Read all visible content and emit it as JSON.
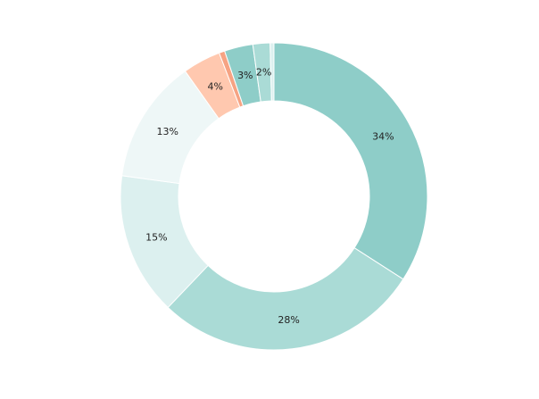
{
  "chart_data": {
    "type": "pie",
    "variant": "donut",
    "legend": "none",
    "slices": [
      {
        "label": "34%",
        "value": 34.0,
        "color": "#8ecdc8"
      },
      {
        "label": "28%",
        "value": 28.0,
        "color": "#aadbd6"
      },
      {
        "label": "15%",
        "value": 15.0,
        "color": "#dcf0ef"
      },
      {
        "label": "13%",
        "value": 13.0,
        "color": "#eef7f7"
      },
      {
        "label": "4%",
        "value": 4.0,
        "color": "#ffc8af"
      },
      {
        "label": "",
        "value": 0.6,
        "color": "#f6a383"
      },
      {
        "label": "3%",
        "value": 3.0,
        "color": "#8ecdc8"
      },
      {
        "label": "2%",
        "value": 1.8,
        "color": "#aadbd6"
      },
      {
        "label": "",
        "value": 0.4,
        "color": "#dcf0ef"
      }
    ]
  }
}
